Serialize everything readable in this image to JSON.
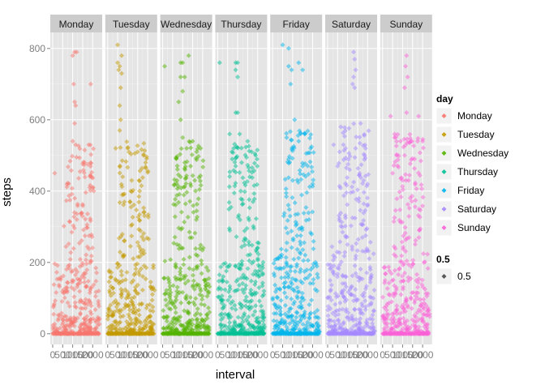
{
  "chart_data": {
    "type": "scatter",
    "title": "",
    "xlabel": "interval",
    "ylabel": "steps",
    "ylim": [
      -30,
      845
    ],
    "yticks": [
      0,
      200,
      400,
      600,
      800
    ],
    "xlim": [
      -120,
      2475
    ],
    "xticks": [
      0,
      500,
      1000,
      1500,
      2000
    ],
    "xtick_labels": [
      "0",
      "500",
      "1000",
      "1500",
      "2000"
    ],
    "grid": true,
    "legend_position": "right",
    "point_alpha": 0.5,
    "facets": [
      "Monday",
      "Tuesday",
      "Wednesday",
      "Thursday",
      "Friday",
      "Saturday",
      "Sunday"
    ],
    "series": [
      {
        "name": "Monday",
        "color": "#F8766D",
        "tall_points": [
          [
            1100,
            790
          ],
          [
            1200,
            790
          ],
          [
            1000,
            780
          ],
          [
            1050,
            700
          ],
          [
            1900,
            700
          ],
          [
            1100,
            650
          ],
          [
            1150,
            640
          ],
          [
            1100,
            590
          ],
          [
            1000,
            540
          ],
          [
            1150,
            530
          ],
          [
            1800,
            530
          ],
          [
            1900,
            480
          ],
          [
            100,
            450
          ],
          [
            1100,
            380
          ],
          [
            1850,
            410
          ],
          [
            2050,
            400
          ]
        ],
        "low_max": 200
      },
      {
        "name": "Tuesday",
        "color": "#C49A00",
        "tall_points": [
          [
            500,
            810
          ],
          [
            700,
            780
          ],
          [
            500,
            760
          ],
          [
            600,
            750
          ],
          [
            550,
            740
          ],
          [
            700,
            730
          ],
          [
            650,
            690
          ],
          [
            600,
            640
          ],
          [
            650,
            600
          ],
          [
            600,
            570
          ],
          [
            400,
            520
          ],
          [
            1000,
            520
          ],
          [
            1500,
            510
          ],
          [
            1800,
            500
          ],
          [
            1900,
            480
          ],
          [
            1200,
            430
          ],
          [
            1600,
            400
          ]
        ],
        "low_max": 210
      },
      {
        "name": "Wednesday",
        "color": "#53B400",
        "tall_points": [
          [
            100,
            750
          ],
          [
            900,
            760
          ],
          [
            1000,
            760
          ],
          [
            1300,
            780
          ],
          [
            900,
            720
          ],
          [
            1100,
            720
          ],
          [
            1000,
            680
          ],
          [
            800,
            650
          ],
          [
            900,
            600
          ],
          [
            1000,
            550
          ],
          [
            1200,
            520
          ],
          [
            1500,
            540
          ],
          [
            1700,
            510
          ],
          [
            1900,
            520
          ],
          [
            1100,
            480
          ],
          [
            1400,
            470
          ],
          [
            900,
            440
          ],
          [
            1600,
            430
          ]
        ],
        "low_max": 210
      },
      {
        "name": "Thursday",
        "color": "#00C094",
        "tall_points": [
          [
            100,
            760
          ],
          [
            900,
            760
          ],
          [
            1000,
            760
          ],
          [
            900,
            740
          ],
          [
            1000,
            720
          ],
          [
            900,
            620
          ],
          [
            1000,
            620
          ],
          [
            600,
            560
          ],
          [
            1100,
            560
          ],
          [
            800,
            520
          ],
          [
            1500,
            540
          ],
          [
            1700,
            510
          ],
          [
            900,
            470
          ],
          [
            1200,
            480
          ],
          [
            1600,
            440
          ],
          [
            1900,
            500
          ]
        ],
        "low_max": 205
      },
      {
        "name": "Friday",
        "color": "#00B6EB",
        "tall_points": [
          [
            500,
            810
          ],
          [
            800,
            800
          ],
          [
            1300,
            760
          ],
          [
            800,
            750
          ],
          [
            950,
            740
          ],
          [
            1500,
            740
          ],
          [
            900,
            700
          ],
          [
            700,
            550
          ],
          [
            1100,
            600
          ],
          [
            1300,
            540
          ],
          [
            1600,
            560
          ],
          [
            1900,
            520
          ],
          [
            800,
            490
          ],
          [
            1500,
            470
          ],
          [
            1000,
            430
          ],
          [
            2000,
            420
          ]
        ],
        "low_max": 240
      },
      {
        "name": "Saturday",
        "color": "#A58AFF",
        "tall_points": [
          [
            1300,
            790
          ],
          [
            1350,
            770
          ],
          [
            1400,
            740
          ],
          [
            1300,
            720
          ],
          [
            1250,
            700
          ],
          [
            1350,
            690
          ],
          [
            300,
            530
          ],
          [
            600,
            510
          ],
          [
            900,
            520
          ],
          [
            1400,
            520
          ],
          [
            1900,
            520
          ],
          [
            500,
            470
          ],
          [
            1100,
            460
          ],
          [
            1600,
            450
          ],
          [
            1800,
            430
          ],
          [
            2000,
            420
          ]
        ],
        "low_max": 260
      },
      {
        "name": "Sunday",
        "color": "#FB61D7",
        "tall_points": [
          [
            1200,
            780
          ],
          [
            1150,
            750
          ],
          [
            1250,
            720
          ],
          [
            1100,
            690
          ],
          [
            400,
            610
          ],
          [
            1200,
            620
          ],
          [
            1800,
            610
          ],
          [
            600,
            550
          ],
          [
            900,
            540
          ],
          [
            1400,
            540
          ],
          [
            2000,
            540
          ],
          [
            700,
            500
          ],
          [
            1100,
            500
          ],
          [
            1600,
            490
          ],
          [
            500,
            450
          ],
          [
            1300,
            430
          ]
        ],
        "low_max": 230
      }
    ],
    "legend_color_title": "day",
    "legend_alpha_title": "0.5",
    "legend_alpha_label": "0.5",
    "legend_alpha_color": "#595959"
  }
}
